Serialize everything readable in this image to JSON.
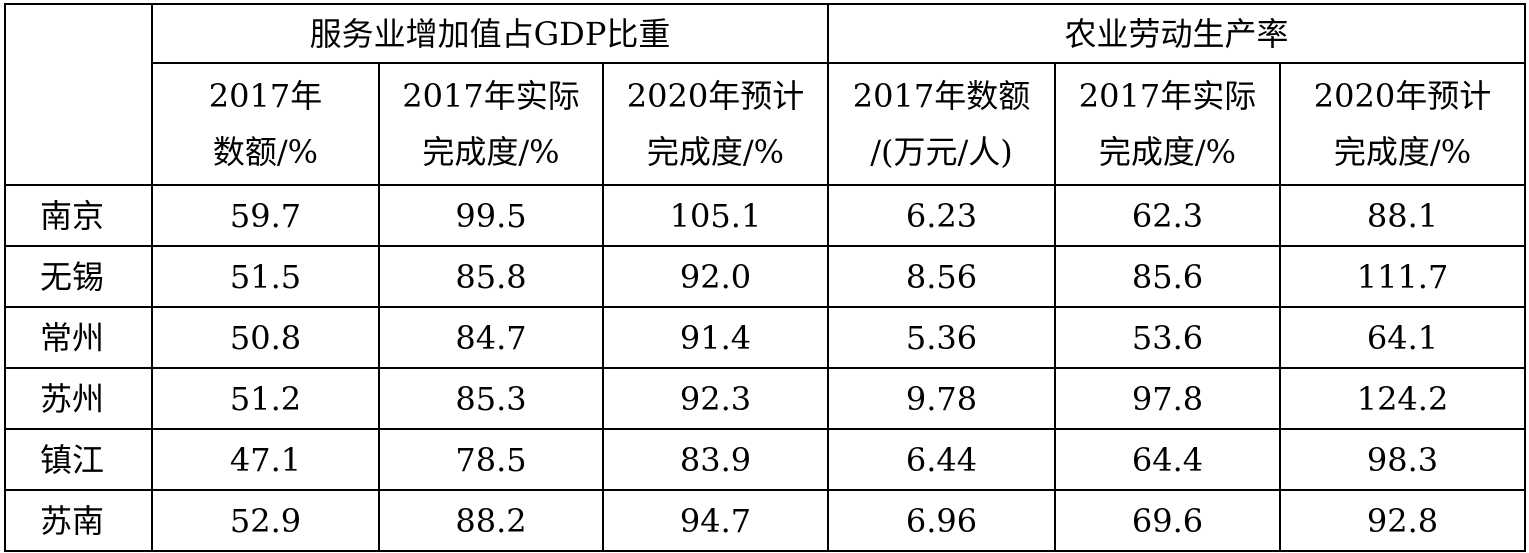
{
  "table": {
    "corner": "",
    "groups": [
      {
        "label": "服务业增加值占GDP比重"
      },
      {
        "label": "农业劳动生产率"
      }
    ],
    "subheaders": [
      {
        "line1": "2017年",
        "line2": "数额/%"
      },
      {
        "line1": "2017年实际",
        "line2": "完成度/%"
      },
      {
        "line1": "2020年预计",
        "line2": "完成度/%"
      },
      {
        "line1": "2017年数额",
        "line2": "/(万元/人)"
      },
      {
        "line1": "2017年实际",
        "line2": "完成度/%"
      },
      {
        "line1": "2020年预计",
        "line2": "完成度/%"
      }
    ],
    "rows": [
      {
        "region": "南京",
        "cells": [
          "59.7",
          "99.5",
          "105.1",
          "6.23",
          "62.3",
          "88.1"
        ]
      },
      {
        "region": "无锡",
        "cells": [
          "51.5",
          "85.8",
          "92.0",
          "8.56",
          "85.6",
          "111.7"
        ]
      },
      {
        "region": "常州",
        "cells": [
          "50.8",
          "84.7",
          "91.4",
          "5.36",
          "53.6",
          "64.1"
        ]
      },
      {
        "region": "苏州",
        "cells": [
          "51.2",
          "85.3",
          "92.3",
          "9.78",
          "97.8",
          "124.2"
        ]
      },
      {
        "region": "镇江",
        "cells": [
          "47.1",
          "78.5",
          "83.9",
          "6.44",
          "64.4",
          "98.3"
        ]
      },
      {
        "region": "苏南",
        "cells": [
          "52.9",
          "88.2",
          "94.7",
          "6.96",
          "69.6",
          "92.8"
        ]
      }
    ]
  }
}
